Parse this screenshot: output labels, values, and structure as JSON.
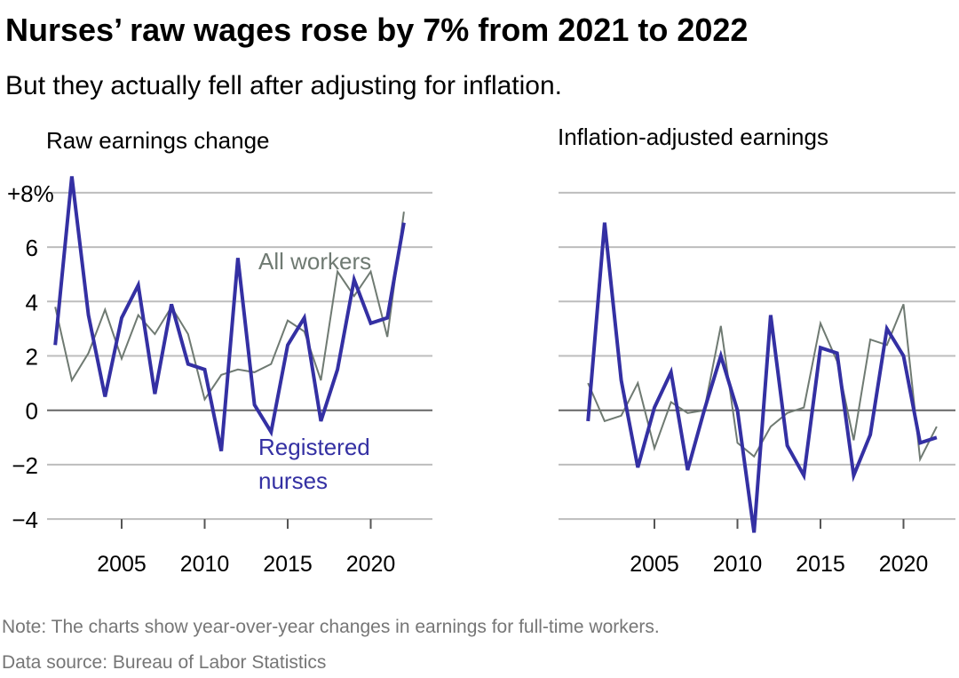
{
  "title": "Nurses’ raw wages rose by 7% from 2021 to 2022",
  "subtitle": "But they actually fell after adjusting for inflation.",
  "note": "Note: The charts show year-over-year changes in earnings for full-time workers.",
  "source": "Data source: Bureau of Labor Statistics",
  "colors": {
    "nurses": "#3430a3",
    "all_workers": "#6f7a72",
    "grid": "#bdbdbd",
    "zero": "#666666",
    "note": "#767676"
  },
  "chart_data": [
    {
      "type": "line",
      "title": "Raw earnings change",
      "x": [
        2001,
        2002,
        2003,
        2004,
        2005,
        2006,
        2007,
        2008,
        2009,
        2010,
        2011,
        2012,
        2013,
        2014,
        2015,
        2016,
        2017,
        2018,
        2019,
        2020,
        2021,
        2022
      ],
      "xticks": [
        "2005",
        "2010",
        "2015",
        "2020"
      ],
      "yticks": [
        "+8%",
        "6",
        "4",
        "2",
        "0",
        "−2",
        "−4"
      ],
      "ylim": [
        -4,
        8
      ],
      "grid": true,
      "series": [
        {
          "name": "All workers",
          "key": "all_workers",
          "values": [
            3.8,
            1.1,
            2.1,
            3.7,
            1.9,
            3.5,
            2.8,
            3.8,
            2.8,
            0.4,
            1.3,
            1.5,
            1.4,
            1.7,
            3.3,
            2.9,
            1.1,
            5.1,
            4.2,
            5.1,
            2.7,
            7.3
          ]
        },
        {
          "name": "Registered nurses",
          "name_lines": [
            "Registered",
            "nurses"
          ],
          "key": "nurses",
          "values": [
            2.4,
            8.6,
            3.5,
            0.5,
            3.4,
            4.6,
            0.6,
            3.9,
            1.7,
            1.5,
            -1.5,
            5.6,
            0.2,
            -0.8,
            2.4,
            3.4,
            -0.4,
            1.5,
            4.8,
            3.2,
            3.4,
            6.9
          ]
        }
      ]
    },
    {
      "type": "line",
      "title": "Inflation-adjusted earnings",
      "x": [
        2001,
        2002,
        2003,
        2004,
        2005,
        2006,
        2007,
        2008,
        2009,
        2010,
        2011,
        2012,
        2013,
        2014,
        2015,
        2016,
        2017,
        2018,
        2019,
        2020,
        2021,
        2022
      ],
      "xticks": [
        "2005",
        "2010",
        "2015",
        "2020"
      ],
      "ylim": [
        -4,
        8
      ],
      "grid": true,
      "series": [
        {
          "key": "all_workers",
          "values": [
            1.0,
            -0.4,
            -0.2,
            1.0,
            -1.4,
            0.3,
            -0.1,
            0.0,
            3.1,
            -1.2,
            -1.7,
            -0.6,
            -0.1,
            0.1,
            3.2,
            1.8,
            -1.1,
            2.6,
            2.4,
            3.9,
            -1.8,
            -0.6
          ]
        },
        {
          "key": "nurses",
          "values": [
            -0.4,
            6.9,
            1.1,
            -2.1,
            0.1,
            1.4,
            -2.2,
            0.0,
            2.0,
            0.0,
            -4.5,
            3.5,
            -1.3,
            -2.4,
            2.3,
            2.1,
            -2.4,
            -0.9,
            3.0,
            2.0,
            -1.2,
            -1.0
          ]
        }
      ]
    }
  ]
}
